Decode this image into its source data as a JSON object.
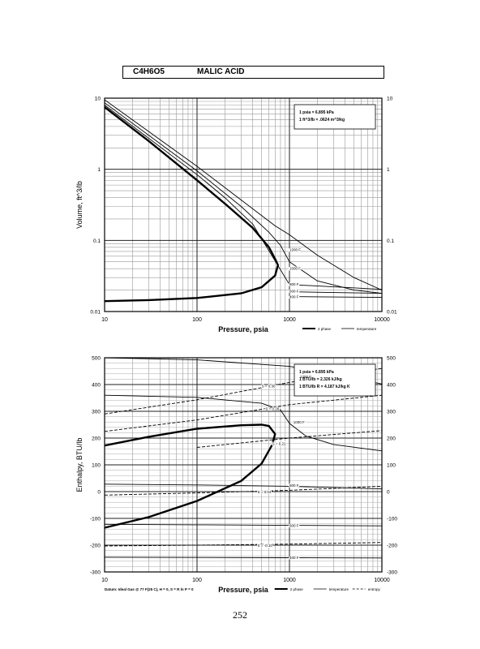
{
  "header": {
    "formula": "C4H6O5",
    "compound": "MALIC ACID"
  },
  "page_number": "252",
  "chart_data": [
    {
      "type": "line",
      "xlabel": "Pressure,  psia",
      "ylabel": "Volume, ft^3/lb",
      "xscale": "log",
      "yscale": "log",
      "xlim": [
        10,
        10000
      ],
      "ylim": [
        0.01,
        10
      ],
      "x_ticks": [
        10,
        100,
        1000,
        10000
      ],
      "x_tick_labels": [
        "10",
        "100",
        "1000",
        "10000"
      ],
      "y_ticks": [
        0.01,
        0.1,
        1,
        10
      ],
      "y_tick_labels": [
        "0.01",
        "0.1",
        "1",
        "10"
      ],
      "grid": true,
      "legend_position": "bottom-right",
      "legend": [
        "2 phase",
        "temperature"
      ],
      "conversion_notes": [
        "1 psia = 6.895 kPa",
        "1 ft^3/lb = .0624 m^3/kg"
      ],
      "series": [
        {
          "name": "2 phase",
          "style": "bold",
          "x": [
            10,
            30,
            100,
            200,
            400,
            600,
            700,
            750,
            700,
            500,
            300,
            100,
            30,
            10
          ],
          "y": [
            7.5,
            2.5,
            0.7,
            0.33,
            0.15,
            0.08,
            0.055,
            0.045,
            0.032,
            0.022,
            0.018,
            0.0155,
            0.0145,
            0.014
          ]
        },
        {
          "name": "1200 F",
          "label_x": 1000,
          "label_y": 0.075,
          "x": [
            10,
            100,
            300,
            700,
            1000,
            2000,
            5000,
            10000
          ],
          "y": [
            9.5,
            1.1,
            0.37,
            0.16,
            0.12,
            0.062,
            0.03,
            0.02
          ]
        },
        {
          "name": "1000 F",
          "label_x": 1000,
          "label_y": 0.041,
          "x": [
            10,
            100,
            300,
            600,
            800,
            1000,
            2000,
            5000,
            10000
          ],
          "y": [
            8.6,
            0.95,
            0.3,
            0.13,
            0.085,
            0.05,
            0.027,
            0.02,
            0.018
          ]
        },
        {
          "name": "800 F",
          "label_x": 1000,
          "label_y": 0.0245,
          "x": [
            10,
            100,
            200,
            400,
            1000,
            10000
          ],
          "y": [
            8,
            0.84,
            0.4,
            0.17,
            0.024,
            0.0205
          ]
        },
        {
          "name": "600 F",
          "label_x": 1000,
          "label_y": 0.0195,
          "x": [
            1000,
            10000
          ],
          "y": [
            0.019,
            0.018
          ]
        },
        {
          "name": "400 F",
          "label_x": 1000,
          "label_y": 0.0162,
          "x": [
            1000,
            10000
          ],
          "y": [
            0.0162,
            0.0158
          ]
        }
      ]
    },
    {
      "type": "line",
      "xlabel": "Pressure,  psia",
      "ylabel": "Enthalpy, BTU/lb",
      "xscale": "log",
      "yscale": "linear",
      "xlim": [
        10,
        10000
      ],
      "ylim": [
        -300,
        500
      ],
      "x_ticks": [
        10,
        100,
        1000,
        10000
      ],
      "x_tick_labels": [
        "10",
        "100",
        "1000",
        "10000"
      ],
      "y_ticks": [
        -300,
        -200,
        -100,
        0,
        100,
        200,
        300,
        400,
        500
      ],
      "y_tick_labels": [
        "-300",
        "-200",
        "-100",
        "0",
        "100",
        "200",
        "300",
        "400",
        "500"
      ],
      "grid": true,
      "legend_position": "bottom-right",
      "legend": [
        "2 phase",
        "temperature",
        "entropy"
      ],
      "conversion_notes": [
        "1 psia = 6.895 kPa",
        "1 BTU/lb = 2.326 kJ/kg",
        "1 BTU/lb R = 4.187 kJ/kg K"
      ],
      "footnote": "Datum: Ideal Gas @ 77 F(25 C),  H = 0,  S = R ln P = 0",
      "series": [
        {
          "name": "2 phase",
          "style": "bold",
          "x": [
            10,
            30,
            100,
            300,
            500,
            600,
            700,
            650,
            500,
            300,
            100,
            30,
            10
          ],
          "y": [
            172,
            205,
            235,
            248,
            250,
            245,
            215,
            175,
            105,
            40,
            -35,
            -95,
            -135
          ]
        },
        {
          "name": "1200 F",
          "label_x": 1300,
          "label_y": 430,
          "x": [
            10,
            100,
            1000,
            3000,
            10000
          ],
          "y": [
            500,
            492,
            468,
            438,
            402
          ]
        },
        {
          "name": "1000 F",
          "label_x": 1100,
          "label_y": 260,
          "x": [
            10,
            100,
            500,
            800,
            1000,
            1500,
            3000,
            10000
          ],
          "y": [
            360,
            352,
            330,
            305,
            255,
            208,
            176,
            152
          ]
        },
        {
          "name": "800 F",
          "label_x": 1000,
          "label_y": 25,
          "x": [
            10,
            100,
            1000,
            10000
          ],
          "y": [
            28,
            25,
            20,
            10
          ]
        },
        {
          "name": "600 F",
          "label_x": 1000,
          "label_y": -125,
          "x": [
            10,
            100,
            1000,
            10000
          ],
          "y": [
            -122,
            -124,
            -126,
            -128
          ]
        },
        {
          "name": "400 F",
          "label_x": 1000,
          "label_y": -245,
          "x": [
            10,
            100,
            1000,
            10000
          ],
          "y": [
            -245,
            -246,
            -247,
            -248
          ]
        },
        {
          "name": "S = 0.30",
          "style": "dashed",
          "label_x": 500,
          "label_y": 395,
          "x": [
            10,
            100,
            1000,
            10000
          ],
          "y": [
            290,
            343,
            408,
            460
          ]
        },
        {
          "name": "S = 0.26",
          "style": "dashed",
          "label_x": 550,
          "label_y": 310,
          "x": [
            10,
            100,
            1000,
            10000
          ],
          "y": [
            225,
            268,
            325,
            360
          ]
        },
        {
          "name": "S = 0.21",
          "style": "dashed",
          "label_x": 650,
          "label_y": 180,
          "x": [
            100,
            1000,
            10000
          ],
          "y": [
            165,
            200,
            228
          ]
        },
        {
          "name": "S = 0.04",
          "style": "dashed",
          "label_x": 450,
          "label_y": 0,
          "x": [
            10,
            100,
            1000,
            10000
          ],
          "y": [
            -13,
            -5,
            5,
            20
          ]
        },
        {
          "name": "S = -0.10",
          "style": "dashed",
          "label_x": 450,
          "label_y": -200,
          "x": [
            10,
            100,
            1000,
            10000
          ],
          "y": [
            -203,
            -200,
            -196,
            -190
          ]
        }
      ]
    }
  ]
}
